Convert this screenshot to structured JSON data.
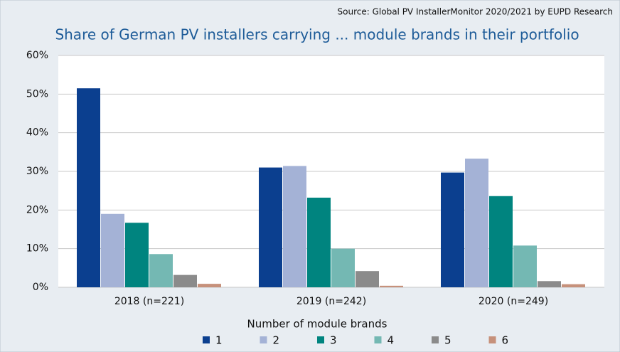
{
  "chart_data": {
    "type": "bar",
    "source": "Source: Global PV InstallerMonitor 2020/2021 by EUPD Research",
    "title": "Share of German PV installers carrying ... module brands in their portfolio",
    "x_label": "Number of module brands",
    "categories": [
      "2018 (n=221)",
      "2019 (n=242)",
      "2020 (n=249)"
    ],
    "series": [
      {
        "name": "1",
        "color": "#0b3f8f",
        "values": [
          51.5,
          31,
          29.7
        ]
      },
      {
        "name": "2",
        "color": "#a4b2d6",
        "values": [
          19,
          31.4,
          33.3
        ]
      },
      {
        "name": "3",
        "color": "#00847f",
        "values": [
          16.7,
          23.2,
          23.6
        ]
      },
      {
        "name": "4",
        "color": "#74b8b3",
        "values": [
          8.6,
          10,
          10.8
        ]
      },
      {
        "name": "5",
        "color": "#8b8b8b",
        "values": [
          3.2,
          4.2,
          1.6
        ]
      },
      {
        "name": "6",
        "color": "#c6917b",
        "values": [
          0.9,
          0.4,
          0.8
        ]
      }
    ],
    "ylim": [
      0,
      60
    ],
    "yticks": [
      {
        "value": 0,
        "label": "0%"
      },
      {
        "value": 10,
        "label": "10%"
      },
      {
        "value": 20,
        "label": "20%"
      },
      {
        "value": 30,
        "label": "30%"
      },
      {
        "value": 40,
        "label": "40%"
      },
      {
        "value": 50,
        "label": "50%"
      },
      {
        "value": 60,
        "label": "60%"
      }
    ],
    "grid": true
  }
}
